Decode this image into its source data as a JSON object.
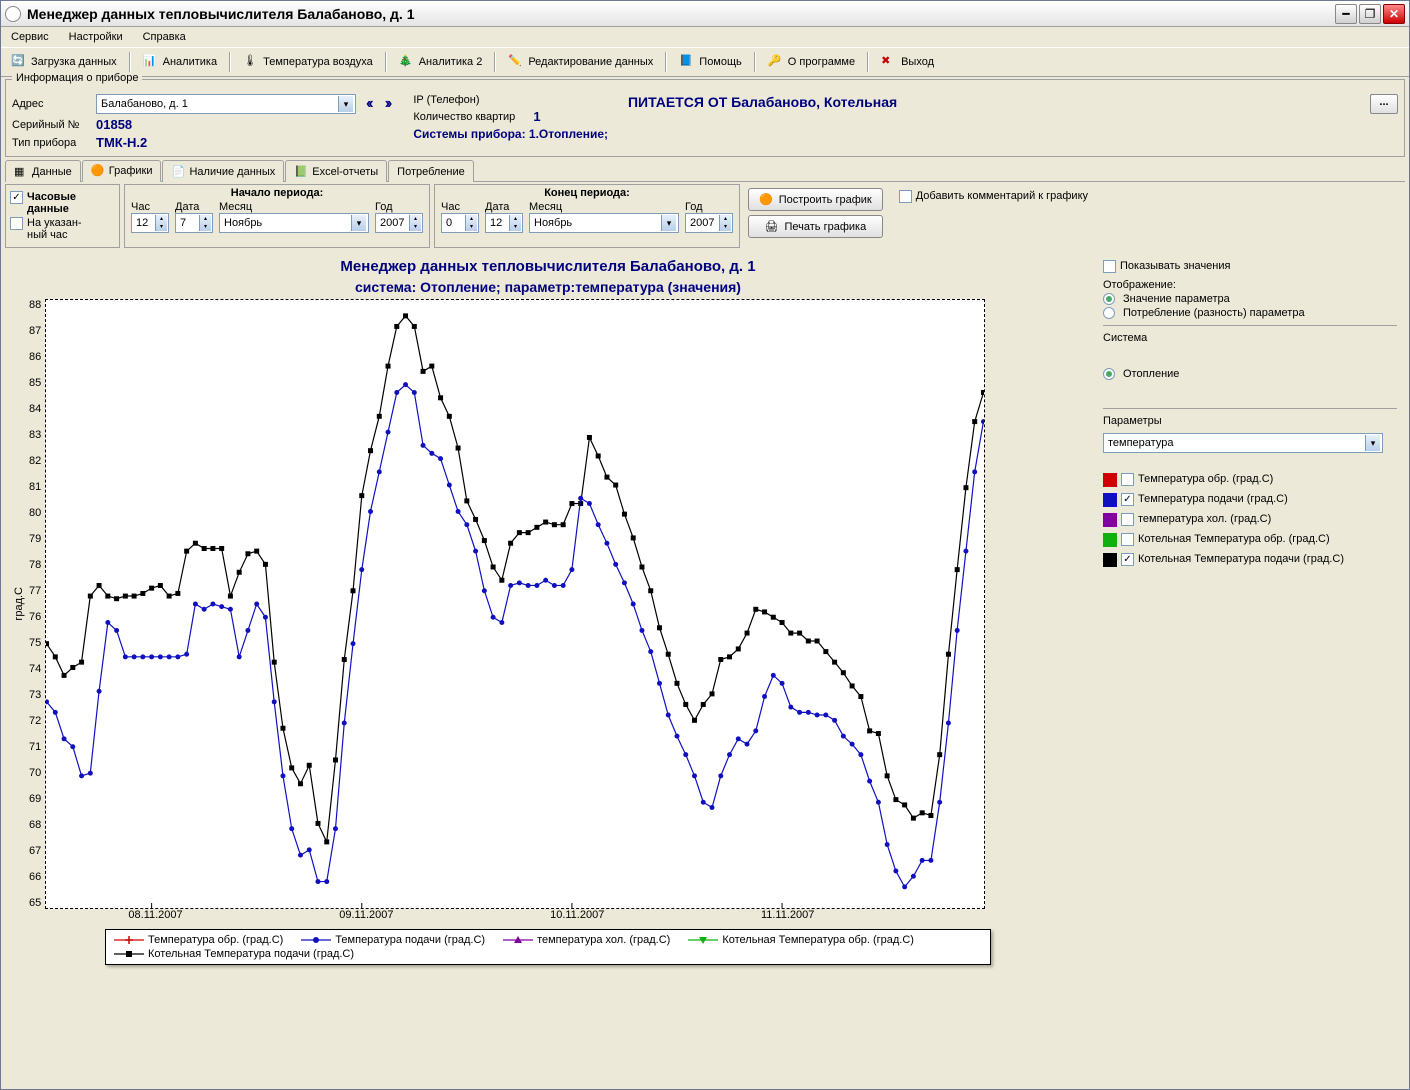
{
  "window": {
    "title": "Менеджер данных тепловычислителя Балабаново, д. 1"
  },
  "menu": {
    "items": [
      "Сервис",
      "Настройки",
      "Справка"
    ]
  },
  "toolbar": {
    "load": "Загрузка данных",
    "analytics": "Аналитика",
    "air_temp": "Температура воздуха",
    "analytics2": "Аналитика 2",
    "edit_data": "Редактирование данных",
    "help": "Помощь",
    "about": "О программе",
    "exit": "Выход"
  },
  "device_info": {
    "group": "Информация о приборе",
    "addr_label": "Адрес",
    "addr_value": "Балабаново, д. 1",
    "serial_label": "Серийный №",
    "serial_value": "01858",
    "type_label": "Тип прибора",
    "type_value": "ТМК-Н.2",
    "ip_label": "IP (Телефон)",
    "apts_label": "Количество квартир",
    "apts_value": "1",
    "systems_label": "Системы прибора: 1.Отопление;",
    "fed_by": "ПИТАЕТСЯ ОТ Балабаново, Котельная"
  },
  "tabs": {
    "data": "Данные",
    "charts": "Графики",
    "availability": "Наличие данных",
    "excel": "Excel-отчеты",
    "consumption": "Потребление"
  },
  "left_opts": {
    "hourly": "Часовые данные",
    "at_hour": "На указан-\nный час"
  },
  "period": {
    "start_title": "Начало периода:",
    "end_title": "Конец периода:",
    "hour": "Час",
    "date": "Дата",
    "month": "Месяц",
    "year": "Год",
    "start_hour": "12",
    "start_date": "7",
    "start_month": "Ноябрь",
    "start_year": "2007",
    "end_hour": "0",
    "end_date": "12",
    "end_month": "Ноябрь",
    "end_year": "2007"
  },
  "buttons": {
    "build": "Построить график",
    "print": "Печать графика",
    "add_comment": "Добавить комментарий к графику"
  },
  "side": {
    "show_values": "Показывать значения",
    "display": "Отображение:",
    "param_value": "Значение параметра",
    "param_diff": "Потребление (разность) параметра",
    "system": "Система",
    "heating": "Отопление",
    "params": "Параметры",
    "param_select": "температура",
    "series": [
      {
        "color": "#d00000",
        "label": "Температура обр. (град.C)",
        "checked": false
      },
      {
        "color": "#1010c0",
        "label": "Температура подачи (град.C)",
        "checked": true
      },
      {
        "color": "#8000a0",
        "label": "температура хол. (град.C)",
        "checked": false
      },
      {
        "color": "#10b010",
        "label": "Котельная Температура обр. (град.C)",
        "checked": false
      },
      {
        "color": "#000000",
        "label": "Котельная Температура подачи (град.C)",
        "checked": true
      }
    ]
  },
  "chart": {
    "title": "Менеджер данных тепловычислителя Балабаново, д. 1",
    "subtitle": "система: Отопление;   параметр:температура (значения)",
    "ylabel": "град.C",
    "ymin": 65,
    "ymax": 88,
    "ystep": 1,
    "x_dates": [
      "08.11.2007",
      "09.11.2007",
      "10.11.2007",
      "11.11.2007"
    ],
    "x_date_positions": [
      12,
      36,
      60,
      84
    ],
    "n_points": 108,
    "colors": {
      "blue": "#1010c0",
      "black": "#000000",
      "grid": "#c0c0c0",
      "bg": "#ffffff",
      "title": "#000080"
    },
    "series_black": [
      75.0,
      74.5,
      73.8,
      74.1,
      74.3,
      76.8,
      77.2,
      76.8,
      76.7,
      76.8,
      76.8,
      76.9,
      77.1,
      77.2,
      76.8,
      76.9,
      78.5,
      78.8,
      78.6,
      78.6,
      78.6,
      76.8,
      77.7,
      78.4,
      78.5,
      78.0,
      74.3,
      71.8,
      70.3,
      69.7,
      70.4,
      68.2,
      67.5,
      70.6,
      74.4,
      77.0,
      80.6,
      82.3,
      83.6,
      85.5,
      87.0,
      87.4,
      87.0,
      85.3,
      85.5,
      84.3,
      83.6,
      82.4,
      80.4,
      79.7,
      78.9,
      77.9,
      77.4,
      78.8,
      79.2,
      79.2,
      79.4,
      79.6,
      79.5,
      79.5,
      80.3,
      80.3,
      82.8,
      82.1,
      81.3,
      81.0,
      79.9,
      79.0,
      77.9,
      77.0,
      75.6,
      74.6,
      73.5,
      72.7,
      72.1,
      72.7,
      73.1,
      74.4,
      74.5,
      74.8,
      75.4,
      76.3,
      76.2,
      76.0,
      75.8,
      75.4,
      75.4,
      75.1,
      75.1,
      74.7,
      74.3,
      73.9,
      73.4,
      73.0,
      71.7,
      71.6,
      70.0,
      69.1,
      68.9,
      68.4,
      68.6,
      68.5,
      70.8,
      74.6,
      77.8,
      80.9,
      83.4,
      84.5
    ],
    "series_blue": [
      72.8,
      72.4,
      71.4,
      71.1,
      70.0,
      70.1,
      73.2,
      75.8,
      75.5,
      74.5,
      74.5,
      74.5,
      74.5,
      74.5,
      74.5,
      74.5,
      74.6,
      76.5,
      76.3,
      76.5,
      76.4,
      76.3,
      74.5,
      75.5,
      76.5,
      76.0,
      72.8,
      70.0,
      68.0,
      67.0,
      67.2,
      66.0,
      66.0,
      68.0,
      72.0,
      75.0,
      77.8,
      80.0,
      81.5,
      83.0,
      84.5,
      84.8,
      84.5,
      82.5,
      82.2,
      82.0,
      81.0,
      80.0,
      79.5,
      78.5,
      77.0,
      76.0,
      75.8,
      77.2,
      77.3,
      77.2,
      77.2,
      77.4,
      77.2,
      77.2,
      77.8,
      80.5,
      80.3,
      79.5,
      78.8,
      78.0,
      77.3,
      76.5,
      75.5,
      74.7,
      73.5,
      72.3,
      71.5,
      70.8,
      70.0,
      69.0,
      68.8,
      70.0,
      70.8,
      71.4,
      71.2,
      71.7,
      73.0,
      73.8,
      73.5,
      72.6,
      72.4,
      72.4,
      72.3,
      72.3,
      72.1,
      71.5,
      71.2,
      70.8,
      69.8,
      69.0,
      67.4,
      66.4,
      65.8,
      66.2,
      66.8,
      66.8,
      69.0,
      72.0,
      75.5,
      78.5,
      81.5,
      83.4
    ],
    "legend_items": [
      {
        "label": "Температура обр. (град.C)",
        "color": "#d00000",
        "marker": "plus"
      },
      {
        "label": "Температура подачи (град.C)",
        "color": "#1010c0",
        "marker": "circle"
      },
      {
        "label": "температура хол. (град.C)",
        "color": "#8000a0",
        "marker": "triup"
      },
      {
        "label": "Котельная Температура обр. (град.C)",
        "color": "#10b010",
        "marker": "tridn"
      },
      {
        "label": "Котельная Температура подачи (град.C)",
        "color": "#000000",
        "marker": "square"
      }
    ]
  }
}
